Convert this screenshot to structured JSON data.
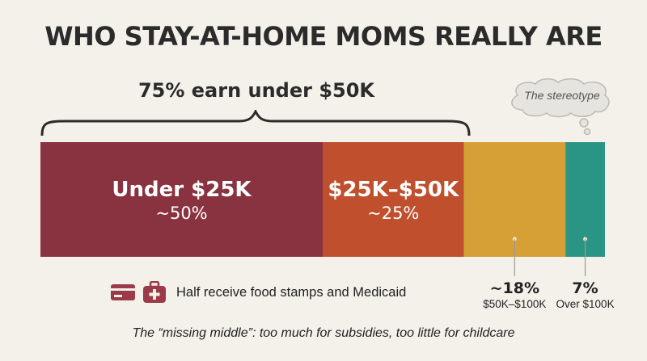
{
  "title": "WHO STAY-AT-HOME MOMS REALLY ARE",
  "bracket_label": "75% earn under $50K",
  "stereotype_label": "The stereotype",
  "note": {
    "text": "Half receive food stamps and Medicaid",
    "icons": [
      "credit-card-icon",
      "medical-kit-icon"
    ]
  },
  "footer": "The “missing middle”: too much for subsidies, too little for childcare",
  "colors": {
    "under25": "#8a3340",
    "25to50": "#bf4f2d",
    "50to100": "#d6a036",
    "over100": "#2b9585",
    "background": "#f3f1ea",
    "text": "#2b2b2b"
  },
  "chart_data": {
    "type": "bar",
    "orientation": "horizontal-stacked",
    "title": "WHO STAY-AT-HOME MOMS REALLY ARE",
    "categories": [
      "Under $25K",
      "$25K–$50K",
      "$50K–$100K",
      "Over $100K"
    ],
    "values": [
      50,
      25,
      18,
      7
    ],
    "value_labels": [
      "~50%",
      "~25%",
      "~18%",
      "7%"
    ],
    "unit": "%",
    "annotations": [
      "75% earn under $50K",
      "The stereotype"
    ]
  }
}
